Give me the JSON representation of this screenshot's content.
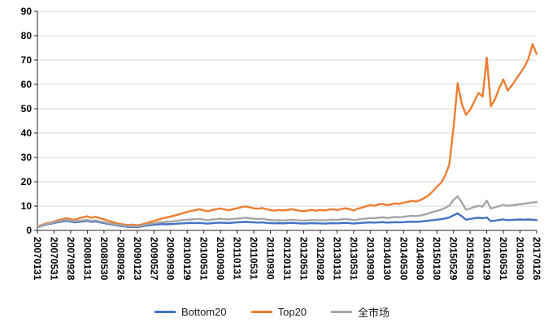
{
  "chart_data": {
    "type": "line",
    "title": "",
    "xlabel": "",
    "ylabel": "",
    "ylim": [
      0,
      90
    ],
    "y_tick_step": 10,
    "grid": true,
    "legend_position": "bottom",
    "n_points": 121,
    "x_label_every": 4,
    "x_labels": [
      "20070131",
      "20070531",
      "20070928",
      "20080131",
      "20080530",
      "20080926",
      "20090123",
      "20090527",
      "20090930",
      "20100129",
      "20100531",
      "20100930",
      "20110131",
      "20110531",
      "20110930",
      "20120131",
      "20120531",
      "20120928",
      "20130131",
      "20130531",
      "20130930",
      "20140130",
      "20140530",
      "20140930",
      "20150130",
      "20150529",
      "20150930",
      "20160129",
      "20160531",
      "20160930",
      "20170126"
    ],
    "colors": {
      "grid": "#D9D9D9",
      "axis": "#262626"
    },
    "series": [
      {
        "name": "Bottom20",
        "color": "#4472C4",
        "values": [
          1.2,
          1.8,
          2.3,
          2.7,
          3.0,
          3.4,
          3.6,
          3.9,
          3.6,
          3.3,
          3.5,
          3.7,
          3.9,
          3.5,
          3.7,
          3.3,
          3.0,
          2.7,
          2.4,
          2.1,
          1.8,
          1.6,
          1.4,
          1.5,
          1.3,
          1.6,
          1.9,
          2.1,
          2.3,
          2.5,
          2.6,
          2.5,
          2.6,
          2.7,
          2.8,
          2.9,
          3.0,
          3.1,
          3.0,
          3.1,
          2.9,
          2.8,
          3.0,
          3.1,
          3.2,
          3.1,
          3.0,
          3.2,
          3.3,
          3.4,
          3.5,
          3.4,
          3.3,
          3.2,
          3.3,
          3.1,
          3.0,
          2.9,
          3.0,
          2.9,
          3.0,
          3.1,
          3.0,
          2.9,
          2.8,
          2.9,
          3.0,
          2.9,
          2.9,
          2.8,
          2.9,
          3.0,
          2.9,
          3.0,
          3.1,
          3.0,
          2.8,
          3.0,
          3.1,
          3.2,
          3.3,
          3.2,
          3.3,
          3.4,
          3.2,
          3.3,
          3.4,
          3.3,
          3.4,
          3.5,
          3.6,
          3.5,
          3.6,
          3.8,
          4.0,
          4.2,
          4.4,
          4.6,
          4.9,
          5.3,
          6.2,
          7.0,
          5.8,
          4.4,
          4.7,
          5.0,
          5.2,
          5.0,
          5.3,
          3.8,
          4.0,
          4.3,
          4.5,
          4.2,
          4.3,
          4.4,
          4.5,
          4.4,
          4.5,
          4.4,
          4.2
        ]
      },
      {
        "name": "Top20",
        "color": "#ED7D31",
        "values": [
          1.5,
          2.2,
          2.8,
          3.2,
          3.6,
          4.2,
          4.6,
          5.0,
          4.6,
          4.3,
          5.0,
          5.4,
          5.8,
          5.2,
          5.6,
          5.0,
          4.6,
          4.0,
          3.5,
          3.0,
          2.6,
          2.4,
          2.2,
          2.4,
          2.1,
          2.4,
          2.9,
          3.4,
          3.9,
          4.4,
          4.9,
          5.3,
          5.7,
          6.1,
          6.6,
          7.1,
          7.6,
          8.0,
          8.4,
          8.7,
          8.2,
          7.9,
          8.4,
          8.7,
          9.0,
          8.6,
          8.3,
          8.7,
          9.1,
          9.5,
          9.9,
          9.5,
          9.1,
          8.9,
          9.2,
          8.7,
          8.4,
          8.1,
          8.4,
          8.2,
          8.4,
          8.7,
          8.4,
          8.1,
          7.9,
          8.2,
          8.4,
          8.1,
          8.4,
          8.2,
          8.5,
          8.7,
          8.4,
          8.7,
          9.1,
          8.7,
          8.2,
          8.9,
          9.4,
          9.9,
          10.4,
          10.1,
          10.7,
          10.9,
          10.4,
          10.7,
          11.1,
          10.9,
          11.4,
          11.7,
          12.1,
          11.9,
          12.4,
          13.3,
          14.4,
          16.0,
          18.0,
          19.5,
          22.5,
          27.0,
          42.0,
          60.5,
          52.0,
          47.5,
          49.5,
          53.0,
          56.5,
          55.0,
          71.0,
          51.0,
          54.0,
          58.5,
          62.0,
          57.5,
          59.5,
          62.0,
          64.5,
          67.0,
          70.5,
          76.5,
          72.5
        ]
      },
      {
        "name": "全市场",
        "color": "#A5A5A5",
        "values": [
          1.3,
          1.9,
          2.5,
          2.9,
          3.3,
          3.7,
          4.0,
          4.3,
          4.0,
          3.7,
          3.9,
          4.1,
          4.3,
          3.9,
          4.1,
          3.7,
          3.4,
          3.0,
          2.7,
          2.4,
          2.1,
          1.9,
          1.7,
          1.8,
          1.6,
          1.9,
          2.3,
          2.6,
          2.9,
          3.2,
          3.4,
          3.5,
          3.6,
          3.8,
          4.0,
          4.2,
          4.4,
          4.5,
          4.6,
          4.7,
          4.4,
          4.2,
          4.5,
          4.6,
          4.8,
          4.6,
          4.5,
          4.7,
          4.9,
          5.0,
          5.2,
          5.0,
          4.8,
          4.7,
          4.8,
          4.5,
          4.3,
          4.1,
          4.2,
          4.1,
          4.2,
          4.4,
          4.3,
          4.1,
          4.0,
          4.1,
          4.3,
          4.1,
          4.2,
          4.1,
          4.3,
          4.4,
          4.3,
          4.5,
          4.7,
          4.5,
          4.2,
          4.5,
          4.7,
          4.9,
          5.1,
          5.0,
          5.2,
          5.4,
          5.1,
          5.3,
          5.5,
          5.4,
          5.6,
          5.8,
          6.0,
          5.9,
          6.1,
          6.5,
          7.0,
          7.6,
          8.0,
          8.5,
          9.2,
          10.2,
          12.5,
          14.0,
          11.5,
          8.5,
          9.0,
          9.6,
          10.1,
          9.8,
          12.2,
          9.0,
          9.5,
          10.0,
          10.5,
          10.1,
          10.3,
          10.5,
          10.8,
          11.0,
          11.2,
          11.5,
          11.6
        ]
      }
    ]
  },
  "legend": {
    "items": [
      {
        "label": "Bottom20"
      },
      {
        "label": "Top20"
      },
      {
        "label": "全市场"
      }
    ]
  }
}
